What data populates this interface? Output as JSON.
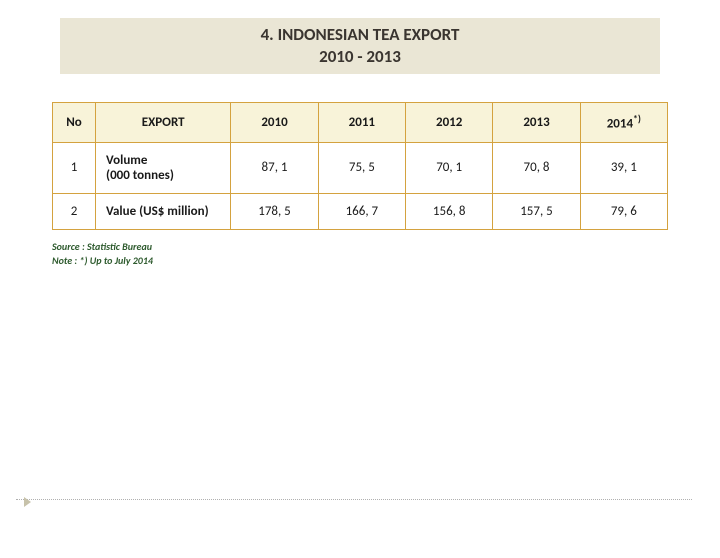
{
  "title": {
    "line1": "4. INDONESIAN TEA EXPORT",
    "line2": "2010 - 2013"
  },
  "table": {
    "headers": {
      "no": "No",
      "export": "EXPORT",
      "y2010": "2010",
      "y2011": "2011",
      "y2012": "2012",
      "y2013": "2013",
      "y2014": "2014",
      "y2014_sup": "*)"
    },
    "rows": [
      {
        "no": "1",
        "label": "Volume\n(000 tonnes)",
        "y2010": "87, 1",
        "y2011": "75, 5",
        "y2012": "70, 1",
        "y2013": "70, 8",
        "y2014": "39, 1"
      },
      {
        "no": "2",
        "label": "Value (US$ million)",
        "y2010": "178, 5",
        "y2011": "166, 7",
        "y2012": "156, 8",
        "y2013": "157, 5",
        "y2014": "79, 6"
      }
    ],
    "header_bg": "#f8f3d9",
    "border_color": "#d4a23f"
  },
  "source": {
    "line1": "Source : Statistic Bureau",
    "line2": "Note : *) Up to July 2014"
  }
}
